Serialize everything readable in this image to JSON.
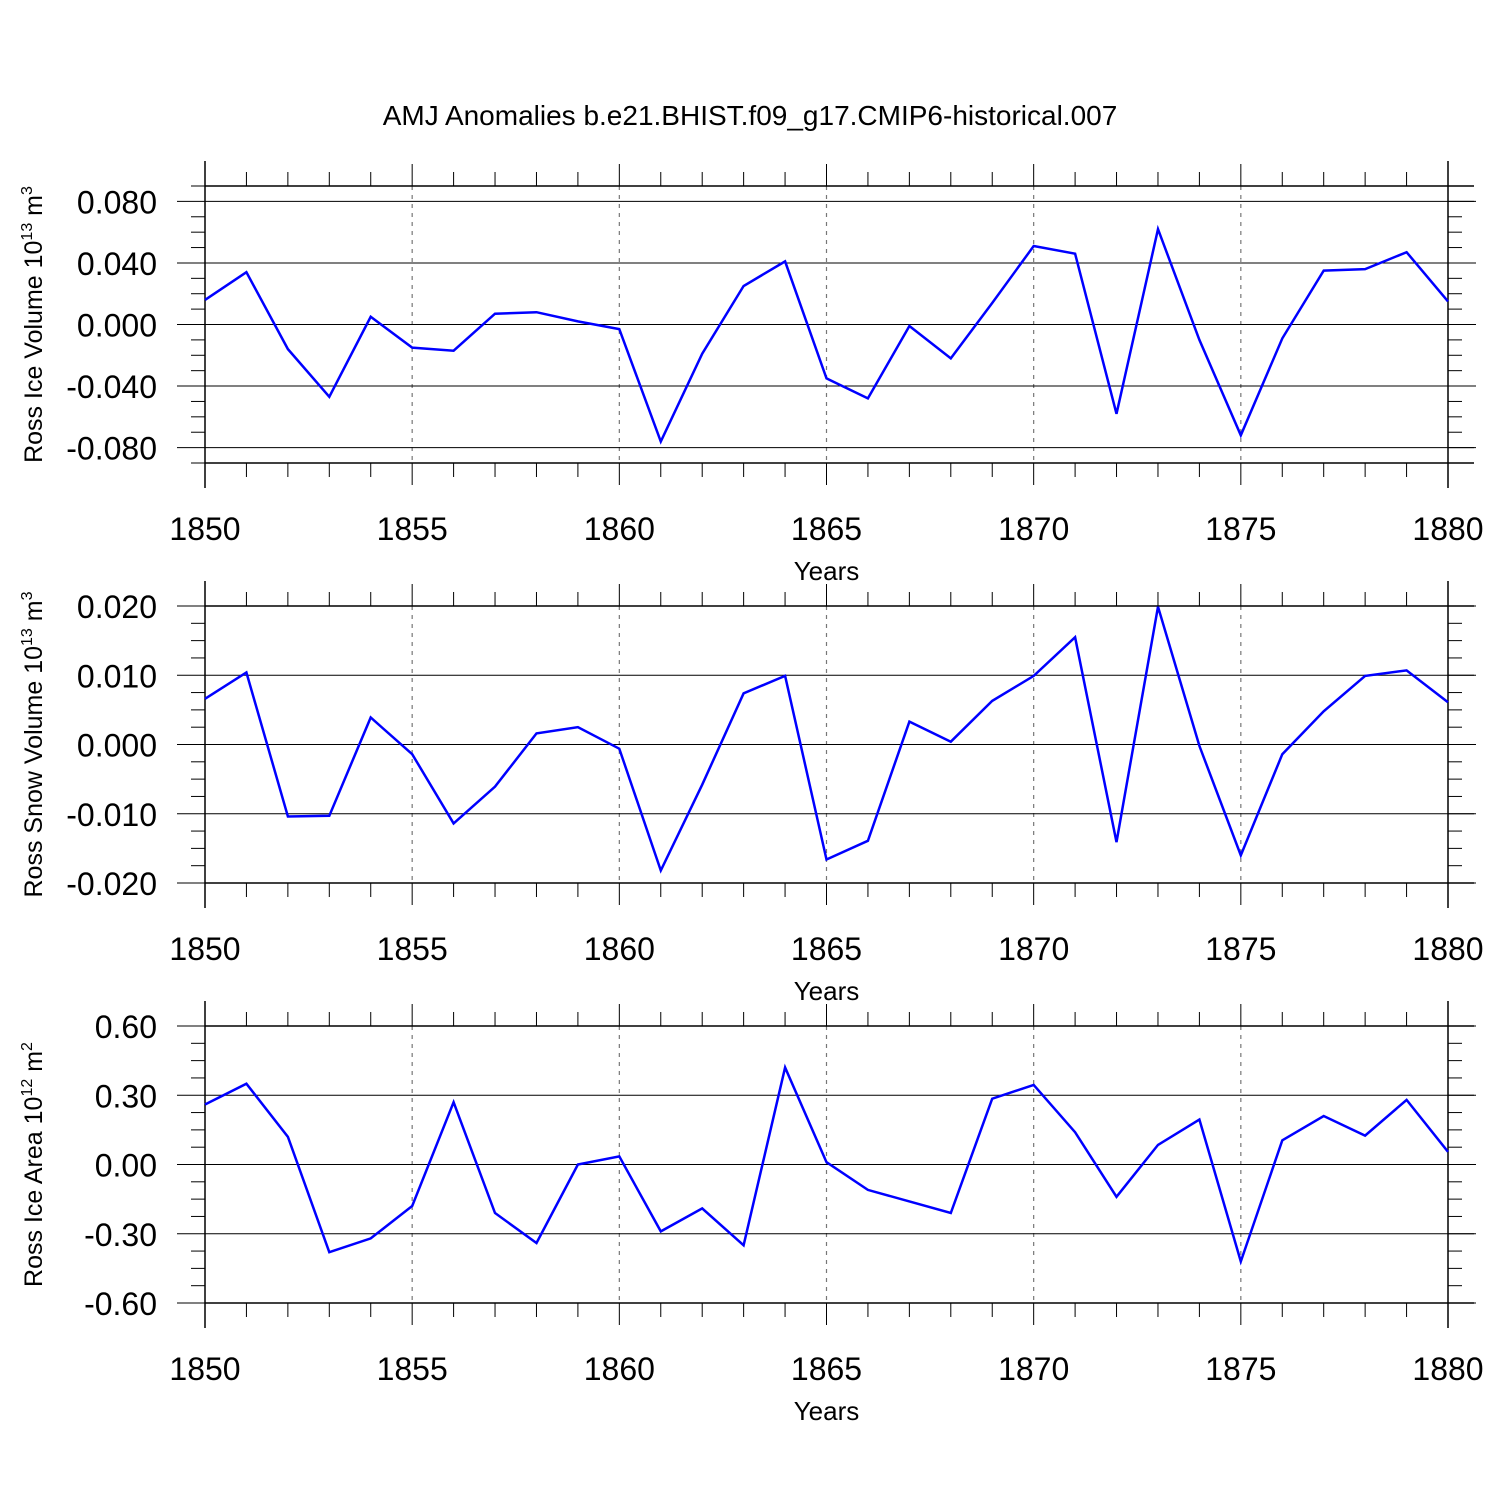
{
  "figure": {
    "title": "AMJ Anomalies b.e21.BHIST.f09_g17.CMIP6-historical.007",
    "line_color": "#0000ff"
  },
  "chart_data": [
    {
      "type": "line",
      "ylabel": "Ross Ice Volume 10",
      "ylabel_exp": "13",
      "ylabel_unit": " m",
      "ylabel_unit_exp": "3",
      "xlabel": "Years",
      "xlim": [
        1850,
        1880
      ],
      "ylim": [
        -0.09,
        0.09
      ],
      "x_ticks": [
        1850,
        1855,
        1860,
        1865,
        1870,
        1875,
        1880
      ],
      "x_tick_labels": [
        "1850",
        "1855",
        "1860",
        "1865",
        "1870",
        "1875",
        "1880"
      ],
      "y_ticks": [
        -0.08,
        -0.04,
        0.0,
        0.04,
        0.08
      ],
      "y_tick_labels": [
        "-0.080",
        "-0.040",
        "0.000",
        "0.040",
        "0.080"
      ],
      "grid": "dashed vertical lines at labeled years",
      "x": [
        1850,
        1851,
        1852,
        1853,
        1854,
        1855,
        1856,
        1857,
        1858,
        1859,
        1860,
        1861,
        1862,
        1863,
        1864,
        1865,
        1866,
        1867,
        1868,
        1869,
        1870,
        1871,
        1872,
        1873,
        1874,
        1875,
        1876,
        1877,
        1878,
        1879,
        1880
      ],
      "values": [
        0.016,
        0.034,
        -0.016,
        -0.047,
        0.005,
        -0.015,
        -0.017,
        0.007,
        0.008,
        0.002,
        -0.003,
        -0.076,
        -0.019,
        0.025,
        0.041,
        -0.035,
        -0.048,
        -0.001,
        -0.022,
        0.014,
        0.051,
        0.046,
        -0.058,
        0.062,
        -0.01,
        -0.072,
        -0.009,
        0.035,
        0.036,
        0.047,
        0.015
      ]
    },
    {
      "type": "line",
      "ylabel": "Ross Snow Volume 10",
      "ylabel_exp": "13",
      "ylabel_unit": " m",
      "ylabel_unit_exp": "3",
      "xlabel": "Years",
      "xlim": [
        1850,
        1880
      ],
      "ylim": [
        -0.02,
        0.02
      ],
      "x_ticks": [
        1850,
        1855,
        1860,
        1865,
        1870,
        1875,
        1880
      ],
      "x_tick_labels": [
        "1850",
        "1855",
        "1860",
        "1865",
        "1870",
        "1875",
        "1880"
      ],
      "y_ticks": [
        -0.02,
        -0.01,
        0.0,
        0.01,
        0.02
      ],
      "y_tick_labels": [
        "-0.020",
        "-0.010",
        "0.000",
        "0.010",
        "0.020"
      ],
      "grid": "dashed vertical lines at labeled years",
      "x": [
        1850,
        1851,
        1852,
        1853,
        1854,
        1855,
        1856,
        1857,
        1858,
        1859,
        1860,
        1861,
        1862,
        1863,
        1864,
        1865,
        1866,
        1867,
        1868,
        1869,
        1870,
        1871,
        1872,
        1873,
        1874,
        1875,
        1876,
        1877,
        1878,
        1879,
        1880
      ],
      "values": [
        0.0066,
        0.0104,
        -0.0104,
        -0.0103,
        0.0039,
        -0.0014,
        -0.0114,
        -0.0061,
        0.0016,
        0.0025,
        -0.0006,
        -0.0182,
        -0.0058,
        0.0074,
        0.0099,
        -0.0166,
        -0.0139,
        0.0033,
        0.0004,
        0.0063,
        0.0099,
        0.0155,
        -0.0141,
        0.0199,
        -0.0002,
        -0.016,
        -0.0014,
        0.0048,
        0.0099,
        0.0107,
        0.0061
      ]
    },
    {
      "type": "line",
      "ylabel": "Ross Ice Area 10",
      "ylabel_exp": "12",
      "ylabel_unit": " m",
      "ylabel_unit_exp": "2",
      "xlabel": "Years",
      "xlim": [
        1850,
        1880
      ],
      "ylim": [
        -0.6,
        0.6
      ],
      "x_ticks": [
        1850,
        1855,
        1860,
        1865,
        1870,
        1875,
        1880
      ],
      "x_tick_labels": [
        "1850",
        "1855",
        "1860",
        "1865",
        "1870",
        "1875",
        "1880"
      ],
      "y_ticks": [
        -0.6,
        -0.3,
        0.0,
        0.3,
        0.6
      ],
      "y_tick_labels": [
        "-0.60",
        "-0.30",
        "0.00",
        "0.30",
        "0.60"
      ],
      "grid": "dashed vertical lines at labeled years",
      "x": [
        1850,
        1851,
        1852,
        1853,
        1854,
        1855,
        1856,
        1857,
        1858,
        1859,
        1860,
        1861,
        1862,
        1863,
        1864,
        1865,
        1866,
        1867,
        1868,
        1869,
        1870,
        1871,
        1872,
        1873,
        1874,
        1875,
        1876,
        1877,
        1878,
        1879,
        1880
      ],
      "values": [
        0.26,
        0.35,
        0.12,
        -0.38,
        -0.32,
        -0.18,
        0.27,
        -0.21,
        -0.34,
        0.0,
        0.035,
        -0.29,
        -0.19,
        -0.35,
        0.42,
        0.01,
        -0.11,
        -0.16,
        -0.21,
        0.285,
        0.345,
        0.14,
        -0.14,
        0.085,
        0.195,
        -0.42,
        0.105,
        0.21,
        0.125,
        0.28,
        0.055
      ]
    }
  ]
}
